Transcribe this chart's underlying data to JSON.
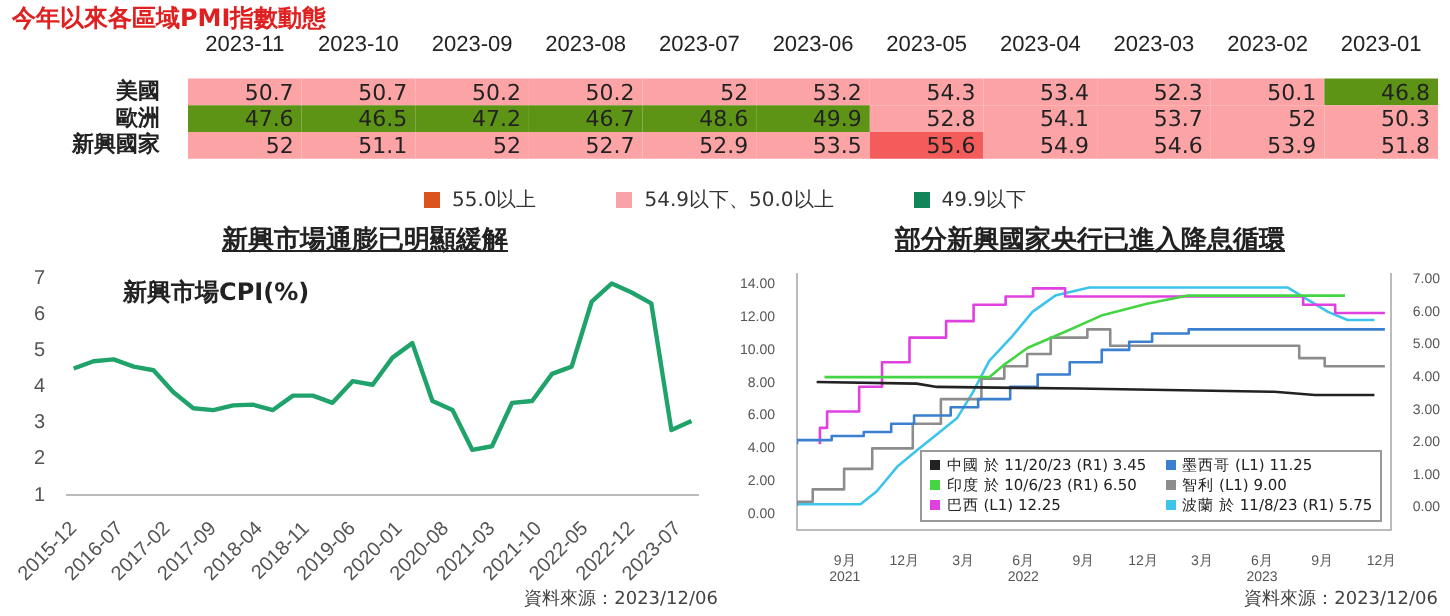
{
  "chart_data": [
    {
      "type": "heatmap",
      "title": "今年以來各區域PMI指數動態",
      "categories": [
        "2023-11",
        "2023-10",
        "2023-09",
        "2023-08",
        "2023-07",
        "2023-06",
        "2023-05",
        "2023-04",
        "2023-03",
        "2023-02",
        "2023-01"
      ],
      "y_categories": [
        "美國",
        "歐洲",
        "新興國家"
      ],
      "cells": [
        [
          50.7,
          50.7,
          50.2,
          50.2,
          52,
          53.2,
          54.3,
          53.4,
          52.3,
          50.1,
          46.8
        ],
        [
          47.6,
          46.5,
          47.2,
          46.7,
          48.6,
          49.9,
          52.8,
          54.1,
          53.7,
          52,
          50.3
        ],
        [
          52,
          51.1,
          52,
          52.7,
          52.9,
          53.5,
          55.6,
          54.9,
          54.6,
          53.9,
          51.8
        ]
      ],
      "colors": [
        [
          "#fca3a6",
          "#fca3a6",
          "#fca3a6",
          "#fca3a6",
          "#fca3a6",
          "#fca3a6",
          "#fca3a6",
          "#fca3a6",
          "#fca3a6",
          "#fca3a6",
          "#5e9416"
        ],
        [
          "#5e9416",
          "#5e9416",
          "#5e9416",
          "#5e9416",
          "#5e9416",
          "#5e9416",
          "#fca3a6",
          "#fca3a6",
          "#fca3a6",
          "#fca3a6",
          "#fca3a6"
        ],
        [
          "#fca3a6",
          "#fca3a6",
          "#fca3a6",
          "#fca3a6",
          "#fca3a6",
          "#fca3a6",
          "#f45c5c",
          "#fca3a6",
          "#fca3a6",
          "#fca3a6",
          "#fca3a6"
        ]
      ],
      "data_labels": true,
      "annotations": [
        "55.0以上",
        "54.9以下、50.0以上",
        "49.9以下"
      ]
    },
    {
      "type": "line",
      "title": "新興市場通膨已明顯緩解",
      "x": [
        "2015-12",
        "2016-03",
        "2016-06",
        "2016-09",
        "2016-12",
        "2017-03",
        "2017-06",
        "2017-09",
        "2017-12",
        "2018-03",
        "2018-06",
        "2018-09",
        "2018-12",
        "2019-03",
        "2019-06",
        "2019-09",
        "2019-12",
        "2020-03",
        "2020-06",
        "2020-09",
        "2020-12",
        "2021-03",
        "2021-06",
        "2021-09",
        "2021-12",
        "2022-03",
        "2022-06",
        "2022-09",
        "2022-12",
        "2023-03",
        "2023-06",
        "2023-09"
      ],
      "series": [
        {
          "name": "新興市場CPI(%)",
          "color": "#1fa36a",
          "values": [
            4.5,
            4.7,
            4.75,
            4.55,
            4.45,
            3.85,
            3.4,
            3.35,
            3.48,
            3.5,
            3.35,
            3.75,
            3.75,
            3.55,
            4.15,
            4.05,
            4.8,
            5.2,
            3.6,
            3.35,
            2.25,
            2.35,
            3.55,
            3.6,
            4.35,
            4.55,
            6.35,
            6.85,
            6.6,
            6.3,
            2.8,
            3.05
          ]
        }
      ],
      "xlim": [
        "2015-11",
        "2023-10"
      ],
      "xticks": [
        "2015-12",
        "2016-07",
        "2017-02",
        "2017-09",
        "2018-04",
        "2018-11",
        "2019-06",
        "2020-01",
        "2020-08",
        "2021-03",
        "2021-10",
        "2022-05",
        "2022-12",
        "2023-07"
      ],
      "ylim": [
        1,
        7
      ],
      "yticks": [
        1,
        2,
        3,
        4,
        5,
        6,
        7
      ],
      "annotations": [
        "資料來源：2023/12/06"
      ]
    },
    {
      "type": "line",
      "title": "部分新興國家央行已進入降息循環",
      "series": [
        {
          "name": "中國 於 11/20/23 (R1) 3.45",
          "color": "#222222",
          "axis": "y2",
          "x": [
            "2021-07-20",
            "2021-12-20",
            "2022-01-20",
            "2022-08-22",
            "2023-06-20",
            "2023-08-21",
            "2023-11-20"
          ],
          "values": [
            3.85,
            3.8,
            3.7,
            3.65,
            3.55,
            3.45,
            3.45
          ]
        },
        {
          "name": "墨西哥 (L1) 11.25",
          "color": "#3a7fd0",
          "type": "step",
          "x": [
            "2021-06-20",
            "2021-08-12",
            "2021-09-30",
            "2021-11-11",
            "2021-12-16",
            "2022-02-10",
            "2022-03-24",
            "2022-05-12",
            "2022-06-23",
            "2022-08-11",
            "2022-09-29",
            "2022-11-10",
            "2022-12-15",
            "2023-02-09",
            "2023-03-30",
            "2023-12-06"
          ],
          "values": [
            4.25,
            4.5,
            4.75,
            5,
            5.5,
            6,
            6.5,
            7,
            7.75,
            8.5,
            9.25,
            10,
            10.5,
            11,
            11.25,
            11.25
          ]
        },
        {
          "name": "印度 於 10/6/23 (R1) 6.50",
          "color": "#44d444",
          "axis": "y2",
          "x": [
            "2021-08-01",
            "2022-04-10",
            "2022-05-04",
            "2022-06-08",
            "2022-08-05",
            "2022-09-30",
            "2022-12-07",
            "2023-02-08",
            "2023-10-06"
          ],
          "values": [
            4,
            4,
            4.4,
            4.9,
            5.4,
            5.9,
            6.25,
            6.5,
            6.5
          ]
        },
        {
          "name": "智利 (L1) 9.00",
          "color": "#8c8c8c",
          "type": "step",
          "x": [
            "2021-06-20",
            "2021-07-14",
            "2021-08-31",
            "2021-10-13",
            "2021-12-14",
            "2022-01-26",
            "2022-03-29",
            "2022-05-03",
            "2022-06-07",
            "2022-07-13",
            "2022-09-07",
            "2022-10-12",
            "2023-07-28",
            "2023-09-05",
            "2023-10-25",
            "2023-12-06"
          ],
          "values": [
            0.5,
            0.75,
            1.5,
            2.75,
            4,
            5.5,
            7,
            8.25,
            9,
            9.75,
            10.75,
            11.25,
            10.25,
            9.5,
            9,
            9
          ]
        },
        {
          "name": "巴西 (L1) 12.25",
          "color": "#e040e0",
          "type": "step",
          "x": [
            "2021-07-25",
            "2021-08-05",
            "2021-09-23",
            "2021-10-28",
            "2021-12-09",
            "2022-02-03",
            "2022-03-17",
            "2022-05-05",
            "2022-06-16",
            "2022-08-04",
            "2023-08-03",
            "2023-09-21",
            "2023-11-02",
            "2023-12-06"
          ],
          "values": [
            4.25,
            5.25,
            6.25,
            7.75,
            9.25,
            10.75,
            11.75,
            12.75,
            13.25,
            13.75,
            13.25,
            12.75,
            12.25,
            12.25
          ]
        },
        {
          "name": "波蘭 於 11/8/23 (R1) 5.75",
          "color": "#3cc4ea",
          "axis": "y2",
          "x": [
            "2021-06-20",
            "2021-09-25",
            "2021-10-20",
            "2021-11-20",
            "2021-12-20",
            "2022-01-20",
            "2022-02-20",
            "2022-03-15",
            "2022-04-10",
            "2022-05-15",
            "2022-06-15",
            "2022-07-20",
            "2022-09-10",
            "2023-07-10",
            "2023-09-10",
            "2023-10-10",
            "2023-11-20"
          ],
          "values": [
            0.1,
            0.1,
            0.5,
            1.25,
            1.75,
            2.25,
            2.75,
            3.5,
            4.5,
            5.25,
            6,
            6.5,
            6.75,
            6.75,
            6,
            5.75,
            5.75
          ]
        }
      ],
      "xlim": [
        "2021-06-20",
        "2023-12-15"
      ],
      "xticks": [
        {
          "value": "2021-09",
          "label": "9月\n2021"
        },
        {
          "value": "2021-12",
          "label": "12月"
        },
        {
          "value": "2022-03",
          "label": "3月"
        },
        {
          "value": "2022-06",
          "label": "6月\n2022"
        },
        {
          "value": "2022-09",
          "label": "9月"
        },
        {
          "value": "2022-12",
          "label": "12月"
        },
        {
          "value": "2023-03",
          "label": "3月"
        },
        {
          "value": "2023-06",
          "label": "6月\n2023"
        },
        {
          "value": "2023-09",
          "label": "9月"
        },
        {
          "value": "2023-12",
          "label": "12月"
        }
      ],
      "ylim": [
        -1,
        14.6
      ],
      "yticks": [
        {
          "value": 0,
          "label": "0.00"
        },
        {
          "value": 2,
          "label": "2.00"
        },
        {
          "value": 4,
          "label": "4.00"
        },
        {
          "value": 6,
          "label": "6.00"
        },
        {
          "value": 8,
          "label": "8.00"
        },
        {
          "value": 10,
          "label": "10.00"
        },
        {
          "value": 12,
          "label": "12.00"
        },
        {
          "value": 14,
          "label": "14.00"
        }
      ],
      "y2lim": [
        -0.7,
        7.15
      ],
      "y2ticks": [
        {
          "value": 0,
          "label": "0.00"
        },
        {
          "value": 1,
          "label": "1.00"
        },
        {
          "value": 2,
          "label": "2.00"
        },
        {
          "value": 3,
          "label": "3.00"
        },
        {
          "value": 4,
          "label": "4.00"
        },
        {
          "value": 5,
          "label": "5.00"
        },
        {
          "value": 6,
          "label": "6.00"
        },
        {
          "value": 7,
          "label": "7.00"
        }
      ],
      "legend": "bottom right",
      "annotations": [
        "資料來源：2023/12/06"
      ]
    }
  ]
}
